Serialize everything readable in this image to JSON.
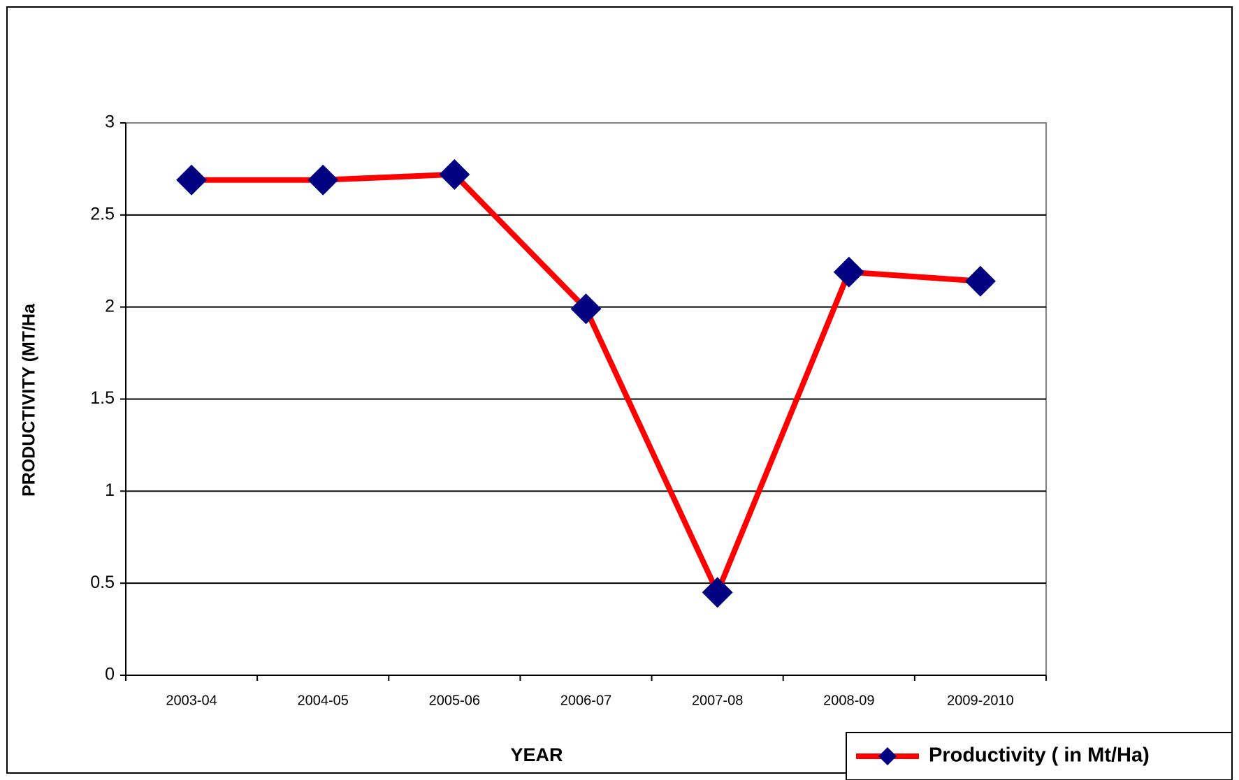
{
  "chart_data": {
    "type": "line",
    "x_label": "YEAR",
    "y_label": "PRODUCTIVITY (MT/Ha",
    "categories": [
      "2003-04",
      "2004-05",
      "2005-06",
      "2006-07",
      "2007-08",
      "2008-09",
      "2009-2010"
    ],
    "series": [
      {
        "name": "Productivity ( in Mt/Ha)",
        "color": "#ff0000",
        "marker_color": "#000080",
        "values": [
          2.69,
          2.69,
          2.72,
          1.99,
          0.45,
          2.19,
          2.14
        ]
      }
    ],
    "ylim": [
      0,
      3
    ],
    "yticks": [
      0,
      0.5,
      1,
      1.5,
      2,
      2.5,
      3
    ],
    "grid": true,
    "legend": "bottom-right"
  }
}
